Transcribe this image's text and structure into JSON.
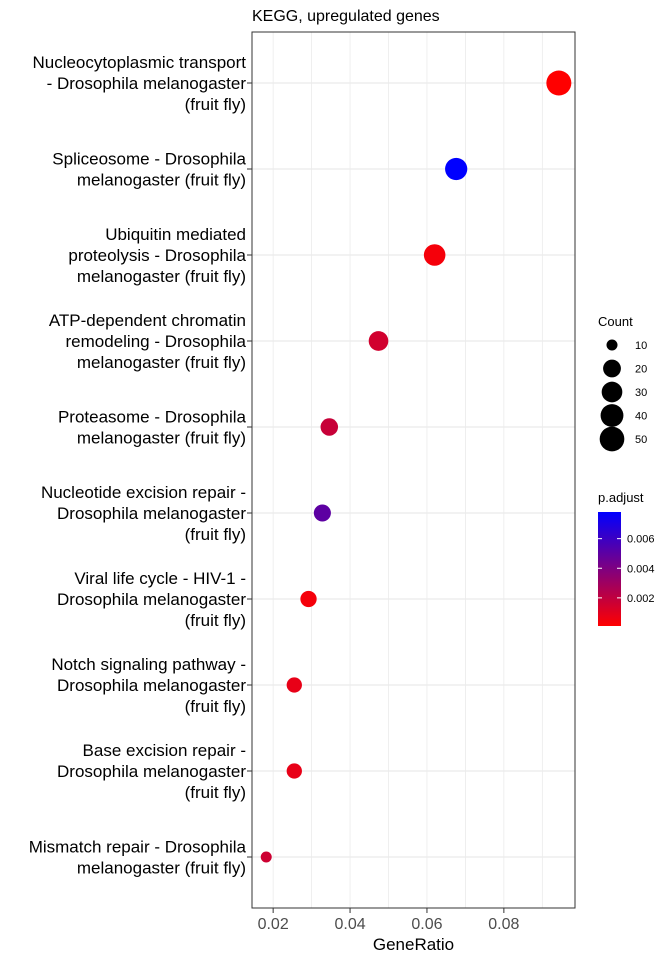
{
  "chart_data": {
    "type": "scatter",
    "title": "KEGG, upregulated genes",
    "xlabel": "GeneRatio",
    "ylabel": "",
    "xlim": [
      0.0145,
      0.0985
    ],
    "xticks": [
      0.02,
      0.04,
      0.06,
      0.08
    ],
    "xtick_labels": [
      "0.02",
      "0.04",
      "0.06",
      "0.08"
    ],
    "grid": true,
    "legend_position": "right",
    "categories": [
      [
        "Nucleocytoplasmic transport",
        "- Drosophila melanogaster",
        "(fruit fly)"
      ],
      [
        "Spliceosome - Drosophila",
        "melanogaster (fruit fly)"
      ],
      [
        "Ubiquitin mediated",
        "proteolysis - Drosophila",
        "melanogaster (fruit fly)"
      ],
      [
        "ATP-dependent chromatin",
        "remodeling - Drosophila",
        "melanogaster (fruit fly)"
      ],
      [
        "Proteasome - Drosophila",
        "melanogaster (fruit fly)"
      ],
      [
        "Nucleotide excision repair -",
        "Drosophila melanogaster",
        "(fruit fly)"
      ],
      [
        "Viral life cycle - HIV-1 -",
        "Drosophila melanogaster",
        "(fruit fly)"
      ],
      [
        "Notch signaling pathway -",
        "Drosophila melanogaster",
        "(fruit fly)"
      ],
      [
        "Base excision repair -",
        "Drosophila melanogaster",
        "(fruit fly)"
      ],
      [
        "Mismatch repair - Drosophila",
        "melanogaster (fruit fly)"
      ]
    ],
    "points": [
      {
        "gene_ratio": 0.0943,
        "count": 52,
        "p_adjust": 0.0001
      },
      {
        "gene_ratio": 0.0676,
        "count": 37,
        "p_adjust": 0.0078
      },
      {
        "gene_ratio": 0.062,
        "count": 34,
        "p_adjust": 0.0004
      },
      {
        "gene_ratio": 0.0474,
        "count": 26,
        "p_adjust": 0.0015
      },
      {
        "gene_ratio": 0.0346,
        "count": 19,
        "p_adjust": 0.0018
      },
      {
        "gene_ratio": 0.0328,
        "count": 18,
        "p_adjust": 0.005
      },
      {
        "gene_ratio": 0.0292,
        "count": 16,
        "p_adjust": 0.0004
      },
      {
        "gene_ratio": 0.0255,
        "count": 14,
        "p_adjust": 0.0008
      },
      {
        "gene_ratio": 0.0255,
        "count": 14,
        "p_adjust": 0.0008
      },
      {
        "gene_ratio": 0.0182,
        "count": 10,
        "p_adjust": 0.0016
      }
    ],
    "size_legend": {
      "title": "Count",
      "values": [
        10,
        20,
        30,
        40,
        50
      ],
      "labels": [
        "10",
        "20",
        "30",
        "40",
        "50"
      ]
    },
    "color_legend": {
      "title": "p.adjust",
      "range": [
        0.0001,
        0.0078
      ],
      "ticks": [
        0.002,
        0.004,
        0.006
      ],
      "tick_labels": [
        "0.002",
        "0.004",
        "0.006"
      ],
      "low_color": "#ff0000",
      "high_color": "#0000ff"
    }
  },
  "colors": {
    "panel_border": "#333333",
    "grid": "#ebebeb",
    "text": "#000000",
    "axis_text": "#4d4d4d"
  }
}
